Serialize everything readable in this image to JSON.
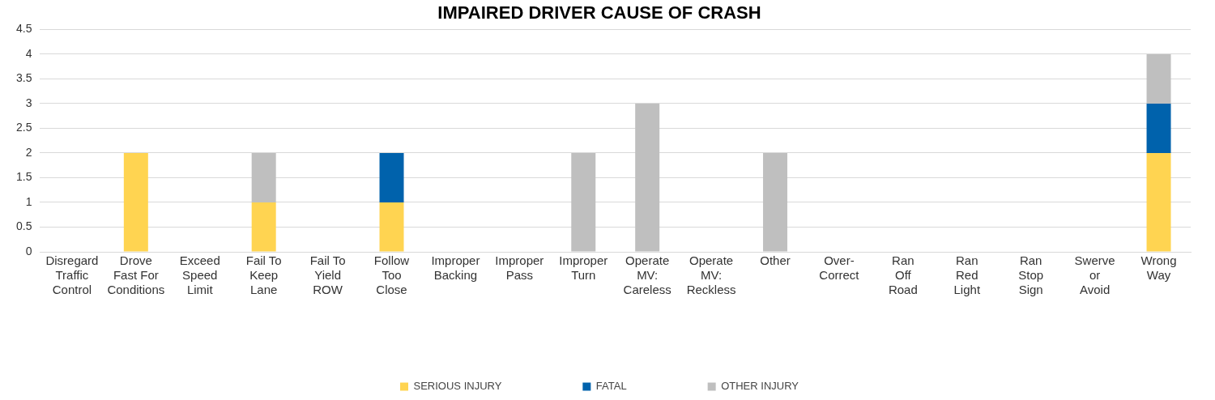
{
  "chart_data": {
    "type": "bar",
    "title": "IMPAIRED DRIVER CAUSE OF CRASH",
    "stacked": true,
    "grid": "y",
    "legend": "bottom",
    "categories": [
      "Disregard\nTraffic\nControl",
      "Drove\nFast For\nConditions",
      "Exceed\nSpeed\nLimit",
      "Fail To\nKeep\nLane",
      "Fail To\nYield\nROW",
      "Follow\nToo\nClose",
      "Improper\nBacking",
      "Improper\nPass",
      "Improper\nTurn",
      "Operate\nMV:\nCareless",
      "Operate\nMV:\nReckless",
      "Other",
      "Over-\nCorrect",
      "Ran\nOff\nRoad",
      "Ran\nRed\nLight",
      "Ran\nStop\nSign",
      "Swerve\nor\nAvoid",
      "Wrong\nWay"
    ],
    "ylim": [
      0,
      4.5
    ],
    "yticks": [
      0,
      0.5,
      1,
      1.5,
      2,
      2.5,
      3,
      3.5,
      4,
      4.5
    ],
    "series": [
      {
        "name": "SERIOUS INJURY",
        "color": "#ffd451",
        "values": [
          0,
          2,
          0,
          1,
          0,
          1,
          0,
          0,
          0,
          0,
          0,
          0,
          0,
          0,
          0,
          0,
          0,
          2
        ]
      },
      {
        "name": "FATAL",
        "color": "#0062ac",
        "values": [
          0,
          0,
          0,
          0,
          0,
          1,
          0,
          0,
          0,
          0,
          0,
          0,
          0,
          0,
          0,
          0,
          0,
          1
        ]
      },
      {
        "name": "OTHER INJURY",
        "color": "#bfbfbf",
        "values": [
          0,
          0,
          0,
          1,
          0,
          0,
          0,
          0,
          2,
          3,
          0,
          2,
          0,
          0,
          0,
          0,
          0,
          1
        ]
      }
    ]
  }
}
